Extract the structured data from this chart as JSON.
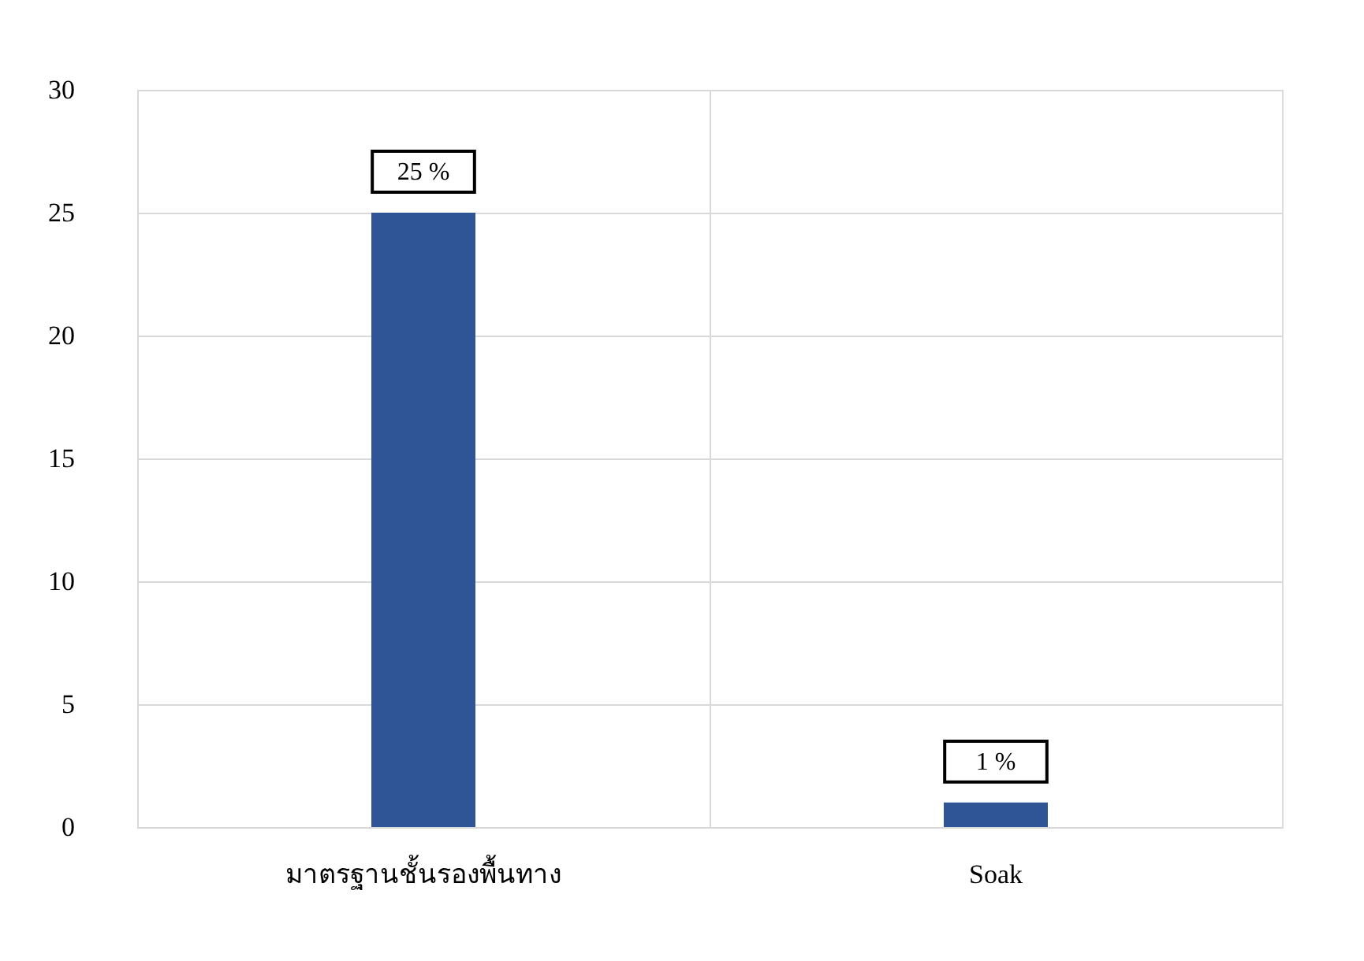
{
  "chart_data": {
    "type": "bar",
    "categories": [
      "มาตรฐานชั้นรองพื้นทาง",
      "Soak"
    ],
    "values": [
      25,
      1
    ],
    "color": "#2f5597",
    "value_labels": [
      "25 %",
      "1 %"
    ],
    "ylim": [
      0,
      30
    ],
    "yticks": [
      0,
      5,
      10,
      15,
      20,
      25,
      30
    ],
    "grid": true
  }
}
